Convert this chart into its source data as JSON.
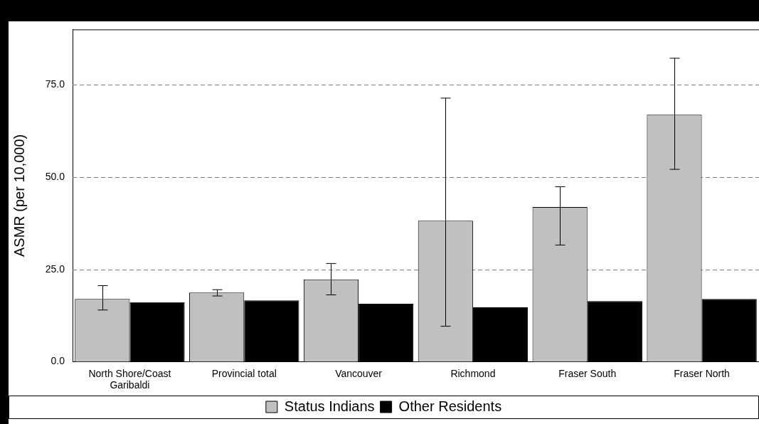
{
  "chart_data": {
    "type": "bar",
    "ylabel": "ASMR (per 10,000)",
    "categories": [
      "North Shore/Coast Garibaldi",
      "Provincial total",
      "Vancouver",
      "Richmond",
      "Fraser South",
      "Fraser North"
    ],
    "series": [
      {
        "name": "Status Indians",
        "color": "#c0c0c0",
        "values": [
          17.0,
          18.7,
          22.3,
          38.2,
          41.9,
          66.9
        ],
        "errors": [
          [
            14.0,
            20.6
          ],
          [
            17.8,
            19.5
          ],
          [
            18.1,
            26.6
          ],
          [
            9.6,
            71.4
          ],
          [
            31.6,
            47.4
          ],
          [
            52.1,
            82.2
          ]
        ]
      },
      {
        "name": "Other Residents",
        "color": "#000000",
        "values": [
          16.1,
          16.6,
          15.7,
          14.7,
          16.4,
          17.0
        ]
      }
    ],
    "ylim": [
      0,
      90
    ],
    "yticks": [
      {
        "value": 0,
        "label": "0.0"
      },
      {
        "value": 25,
        "label": "25.0"
      },
      {
        "value": 50,
        "label": "50.0"
      },
      {
        "value": 75,
        "label": "75.0"
      }
    ],
    "grid": "y",
    "legend": "bottom"
  }
}
